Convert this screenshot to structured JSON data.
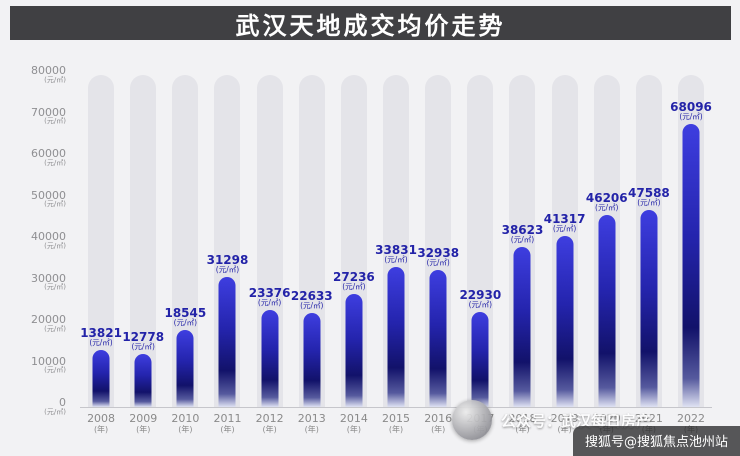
{
  "title": "武汉天地成交均价走势",
  "chart_data": {
    "type": "bar",
    "title": "武汉天地成交均价走势",
    "categories": [
      "2008",
      "2009",
      "2010",
      "2011",
      "2012",
      "2013",
      "2014",
      "2015",
      "2016",
      "2017",
      "2018",
      "2019",
      "2020",
      "2021",
      "2022"
    ],
    "values": [
      13821,
      12778,
      18545,
      31298,
      23376,
      22633,
      27236,
      33831,
      32938,
      22930,
      38623,
      41317,
      46206,
      47588,
      68096
    ],
    "unit_label": "(元/㎡)",
    "x_unit_label": "(年)",
    "xlabel": "",
    "ylabel": "",
    "ylim": [
      0,
      80000
    ],
    "ytick_step": 10000,
    "grid": "off",
    "legend": "none"
  },
  "colors": {
    "bar_top": "#3e3ee0",
    "bar_dark": "#12126a",
    "value_label": "#2323a8",
    "header_bg": "#404043",
    "track": "#e4e4e9"
  },
  "watermarks": {
    "center_text": "公众号：武汉每日房产",
    "corner_text": "搜狐号@搜狐焦点池州站"
  }
}
